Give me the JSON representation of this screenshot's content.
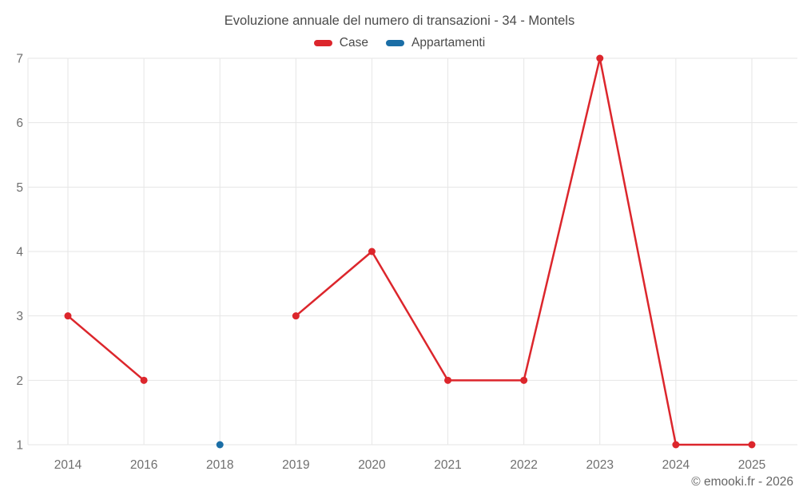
{
  "chart_data": {
    "type": "line",
    "title": "Evoluzione annuale del numero di transazioni - 34 - Montels",
    "categories": [
      "2014",
      "2016",
      "2018",
      "2019",
      "2020",
      "2021",
      "2022",
      "2023",
      "2024",
      "2025"
    ],
    "series": [
      {
        "name": "Case",
        "color": "#dc262c",
        "values": [
          3,
          2,
          null,
          3,
          4,
          2,
          2,
          7,
          1,
          1
        ]
      },
      {
        "name": "Appartamenti",
        "color": "#1b6ea6",
        "values": [
          null,
          null,
          1,
          null,
          null,
          null,
          null,
          null,
          null,
          null
        ]
      }
    ],
    "xlabel": "",
    "ylabel": "",
    "ylim": [
      1,
      7
    ],
    "yticks": [
      1,
      2,
      3,
      4,
      5,
      6,
      7
    ],
    "grid": true,
    "legend_position": "top",
    "marker_radius": 4.5
  },
  "footer": {
    "copyright": "© emooki.fr - 2026"
  },
  "colors": {
    "grid": "#e6e6e6",
    "axis_text": "#6f6f6f",
    "title_text": "#4a4a4a",
    "background": "#ffffff"
  }
}
